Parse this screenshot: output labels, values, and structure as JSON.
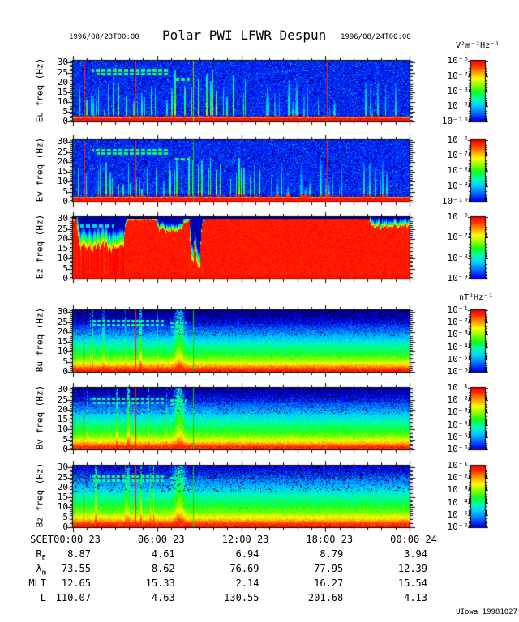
{
  "title": {
    "left_date": "1996/08/23T00:00",
    "text": "Polar PWI LFWR Despun",
    "right_date": "1996/08/24T00:00"
  },
  "credit": "UIowa 19981027",
  "colorbar_units": {
    "electric": "V²m⁻²Hz⁻¹",
    "magnetic": "nT²Hz⁻¹"
  },
  "chart_data": {
    "type": "heatmap",
    "subtype": "frequency-time spectrogram stack, jet colormap (blue=low, red=high)",
    "time_range": "1996/08/23T00:00 to 1996/08/24T00:00",
    "y_range_hz": [
      0,
      31
    ],
    "x_axis": {
      "label": "SCET",
      "ticks": [
        "00:00 23",
        "06:00 23",
        "12:00 23",
        "18:00 23",
        "00:00 24"
      ],
      "range_hours": [
        0,
        24
      ]
    },
    "ephemeris_rows": [
      {
        "label": "R",
        "sub": "E",
        "values": [
          "8.87",
          "4.61",
          "6.94",
          "8.79",
          "3.94"
        ]
      },
      {
        "label": "λ",
        "sub": "m",
        "values": [
          "73.55",
          "8.62",
          "76.69",
          "77.95",
          "12.39"
        ]
      },
      {
        "label": "MLT",
        "sub": "",
        "values": [
          "12.65",
          "15.33",
          "2.14",
          "16.27",
          "15.54"
        ]
      },
      {
        "label": "L",
        "sub": "",
        "values": [
          "110.07",
          "4.63",
          "130.55",
          "201.68",
          "4.13"
        ]
      }
    ],
    "panels": [
      {
        "name": "Eu",
        "ylabel": "Eu freq (Hz)",
        "yticks": [
          0,
          5,
          10,
          15,
          20,
          25,
          30
        ],
        "style": "E",
        "seed": 11,
        "colorbar": {
          "unit": "V²m⁻²Hz⁻¹",
          "exponents": [
            -6,
            -7,
            -8,
            -9,
            -10
          ],
          "range": "1e-6 (red) to 1e-10 (blue)"
        },
        "summary": "Bursty broadband electric noise up to ~30 Hz; intense band below ~2 Hz; dense burst clusters 00:30-07:00 and 07:00-13:30; diffuse emission 13:30-19:00; isolated bursts 21:00-23:00.",
        "markers": [
          {
            "x": 0.004,
            "color": "#00bb00"
          },
          {
            "x": 0.034,
            "color": "#ff2200"
          },
          {
            "x": 0.186,
            "color": "#ff2200"
          },
          {
            "x": 0.356,
            "color": "#99cc00"
          },
          {
            "x": 0.755,
            "color": "#ff2200"
          }
        ],
        "bursts": [
          [
            0.012,
            0.05,
            0.45,
            0.4,
            0.95,
            0.6,
            0.9,
            2
          ],
          [
            0.055,
            0.285,
            0.5,
            0.25,
            0.92,
            0.55,
            0.85,
            2
          ],
          [
            0.29,
            0.43,
            0.5,
            0.5,
            1.0,
            0.65,
            0.95,
            2
          ],
          [
            0.43,
            0.56,
            0.35,
            0.4,
            0.92,
            0.55,
            0.9,
            2
          ],
          [
            0.56,
            0.8,
            0.5,
            0.2,
            0.75,
            0.4,
            0.55,
            4
          ],
          [
            0.86,
            0.97,
            0.35,
            0.2,
            0.8,
            0.45,
            0.6,
            2
          ]
        ],
        "combs": [
          [
            26,
            0.055,
            0.28
          ],
          [
            24.2,
            0.07,
            0.28
          ],
          [
            21.5,
            0.3,
            0.345
          ]
        ]
      },
      {
        "name": "Ev",
        "ylabel": "Ev freq (Hz)",
        "yticks": [
          0,
          5,
          10,
          15,
          20,
          25,
          30
        ],
        "style": "E",
        "seed": 23,
        "colorbar": {
          "unit": "V²m⁻²Hz⁻¹",
          "exponents": [
            -6,
            -7,
            -8,
            -9,
            -10
          ],
          "range": "1e-6 (red) to 1e-10 (blue)"
        },
        "summary": "Same bursty structure as Eu: low-frequency intense band, burst clusters in first half of day, diffuse afternoon emission.",
        "markers": [
          {
            "x": 0.004,
            "color": "#00bb00"
          },
          {
            "x": 0.034,
            "color": "#ff2200"
          },
          {
            "x": 0.186,
            "color": "#ff2200"
          },
          {
            "x": 0.356,
            "color": "#33bb00"
          },
          {
            "x": 0.755,
            "color": "#ff2200"
          }
        ],
        "bursts": [
          [
            0.012,
            0.05,
            0.45,
            0.4,
            0.95,
            0.6,
            0.9,
            2
          ],
          [
            0.055,
            0.285,
            0.5,
            0.25,
            0.92,
            0.55,
            0.85,
            2
          ],
          [
            0.29,
            0.43,
            0.5,
            0.5,
            1.0,
            0.65,
            0.95,
            2
          ],
          [
            0.43,
            0.56,
            0.35,
            0.4,
            0.92,
            0.55,
            0.9,
            2
          ],
          [
            0.56,
            0.8,
            0.5,
            0.2,
            0.75,
            0.4,
            0.55,
            4
          ],
          [
            0.86,
            0.97,
            0.35,
            0.2,
            0.8,
            0.45,
            0.6,
            2
          ]
        ],
        "combs": [
          [
            26,
            0.055,
            0.28
          ],
          [
            24.2,
            0.07,
            0.28
          ],
          [
            21.5,
            0.3,
            0.345
          ]
        ]
      },
      {
        "name": "Ez",
        "ylabel": "Ez freq (Hz)",
        "yticks": [
          0,
          5,
          10,
          15,
          20,
          25,
          30
        ],
        "style": "Ez",
        "seed": 37,
        "colorbar": {
          "unit": "V²m⁻²Hz⁻¹",
          "exponents": [
            -6,
            -7,
            -8,
            -9
          ],
          "range": "1e-6 (red) to 1e-9 (blue)"
        },
        "summary": "Saturated intense emission (red) across nearly all frequencies; reduced upper cutoff (~15-20 Hz) 00:00-03:30; notch 06:00-08:00; two deep dropouts near 08:20-09:00; fluctuating cutoff after 21:00.",
        "markers": [
          {
            "x": 0.004,
            "color": "#ff2200"
          }
        ],
        "ceiling": [
          [
            0.0,
            0.012,
            0.9,
            1.0,
            0.05
          ],
          [
            0.012,
            0.15,
            0.38,
            0.62,
            0.32
          ],
          [
            0.15,
            0.25,
            0.93,
            0.97,
            0.07
          ],
          [
            0.25,
            0.325,
            0.7,
            0.9,
            0.12
          ],
          [
            0.325,
            0.345,
            0.9,
            0.96,
            0.07
          ],
          [
            0.345,
            0.358,
            0.15,
            0.3,
            0.3
          ],
          [
            0.358,
            0.363,
            0.8,
            0.9,
            0.1
          ],
          [
            0.363,
            0.377,
            0.1,
            0.2,
            0.3
          ],
          [
            0.377,
            0.88,
            0.955,
            0.975,
            0.05
          ],
          [
            0.88,
            0.97,
            0.75,
            0.92,
            0.12
          ],
          [
            0.97,
            1.0,
            0.8,
            0.9,
            0.12
          ]
        ],
        "combs": [
          [
            26.5,
            0.02,
            0.12
          ]
        ]
      },
      {
        "name": "Bu",
        "ylabel": "Bu freq (Hz)",
        "yticks": [
          0,
          5,
          10,
          15,
          20,
          25,
          30
        ],
        "style": "B",
        "seed": 51,
        "band_scale": 1.0,
        "colorbar": {
          "unit": "nT²Hz⁻¹",
          "exponents": [
            -1,
            -2,
            -3,
            -4,
            -5,
            -6
          ],
          "range": "1e-1 (red) to 1e-6 (blue)"
        },
        "summary": "Smooth stratified magnetic noise decreasing with frequency: intense below 2 Hz fading to background by ~25 Hz; enhanced bursts 00:30-07:00; narrowband lines ~22-27 Hz early in day.",
        "markers": [
          {
            "x": 0.004,
            "color": "#00bb00"
          },
          {
            "x": 0.031,
            "color": "#ff2200"
          },
          {
            "x": 0.186,
            "color": "#ff2200"
          },
          {
            "x": 0.356,
            "color": "#22cc00"
          }
        ],
        "combs": [
          [
            25.5,
            0.05,
            0.27
          ],
          [
            23.5,
            0.06,
            0.27
          ],
          [
            24.5,
            0.285,
            0.335
          ],
          [
            22.5,
            0.29,
            0.33
          ]
        ]
      },
      {
        "name": "Bv",
        "ylabel": "Bv freq (Hz)",
        "yticks": [
          0,
          5,
          10,
          15,
          20,
          25,
          30
        ],
        "style": "B",
        "seed": 67,
        "band_scale": 0.95,
        "colorbar": {
          "unit": "nT²Hz⁻¹",
          "exponents": [
            -1,
            -2,
            -3,
            -4,
            -5,
            -6
          ],
          "range": "1e-1 (red) to 1e-6 (blue)"
        },
        "summary": "Stratified magnetic spectrum like Bu; bursts and narrowband lines in first quarter of day; bump of enhanced emission near 07:30.",
        "markers": [
          {
            "x": 0.004,
            "color": "#00bb00"
          },
          {
            "x": 0.031,
            "color": "#ff2200"
          },
          {
            "x": 0.186,
            "color": "#ff2200"
          },
          {
            "x": 0.356,
            "color": "#22cc00"
          }
        ],
        "combs": [
          [
            25.5,
            0.05,
            0.27
          ],
          [
            23.5,
            0.06,
            0.27
          ],
          [
            24.5,
            0.285,
            0.335
          ],
          [
            22.5,
            0.29,
            0.33
          ]
        ]
      },
      {
        "name": "Bz",
        "ylabel": "Bz freq (Hz)",
        "yticks": [
          0,
          5,
          10,
          15,
          20,
          25,
          30
        ],
        "style": "B",
        "seed": 83,
        "band_scale": 0.85,
        "colorbar": {
          "unit": "nT²Hz⁻¹",
          "exponents": [
            -1,
            -2,
            -3,
            -4,
            -5,
            -6
          ],
          "range": "1e-1 (red) to 1e-6 (blue)"
        },
        "summary": "Stratified magnetic spectrum with slightly thicker intense low-frequency band; bursts and narrowband lines early in day.",
        "markers": [
          {
            "x": 0.004,
            "color": "#00bb00"
          },
          {
            "x": 0.031,
            "color": "#ff2200"
          },
          {
            "x": 0.186,
            "color": "#ff2200"
          },
          {
            "x": 0.356,
            "color": "#22cc00"
          }
        ],
        "combs": [
          [
            25.5,
            0.05,
            0.27
          ],
          [
            23.5,
            0.06,
            0.27
          ],
          [
            24.5,
            0.285,
            0.335
          ],
          [
            22.5,
            0.29,
            0.33
          ]
        ]
      }
    ]
  }
}
